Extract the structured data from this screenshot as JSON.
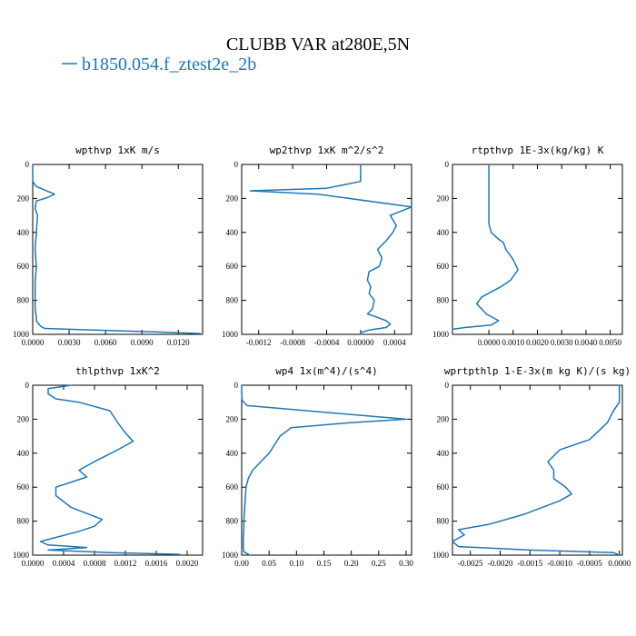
{
  "figure": {
    "title": "CLUBB VAR at280E,5N",
    "legend": {
      "label": "b1850.054.f_ztest2e_2b",
      "color": "#1f77b4",
      "placement": "top-left"
    }
  },
  "chart_data": [
    {
      "type": "line",
      "title": "wpthvp   1xK m/s",
      "xlabel": "",
      "ylabel": "",
      "xlim": [
        0,
        0.014
      ],
      "ylim": [
        0,
        1000
      ],
      "y_inverted": true,
      "x_ticks": [
        0,
        0.003,
        0.006,
        0.009,
        0.012
      ],
      "x_tick_labels": [
        "0.0000",
        "0.0030",
        "0.0060",
        "0.0090",
        "0.0120"
      ],
      "y_ticks": [
        0,
        200,
        400,
        600,
        800,
        1000
      ],
      "y_tick_labels": [
        "0",
        "200",
        "400",
        "600",
        "800",
        "1000"
      ],
      "series": [
        {
          "color": "#1f77b4",
          "x": [
            0,
            0,
            0,
            0.0003,
            0.0013,
            0.0018,
            0.0012,
            0.0003,
            0.0002,
            0.0004,
            0.0003,
            0.0002,
            0.0003,
            0.0002,
            0.0002,
            0.0002,
            0.0003,
            0.0003,
            0.0005,
            0.0007,
            0.001,
            0.005,
            0.01,
            0.0138
          ],
          "y": [
            0,
            50,
            100,
            130,
            160,
            175,
            195,
            215,
            260,
            300,
            400,
            500,
            600,
            700,
            800,
            850,
            900,
            920,
            940,
            955,
            965,
            975,
            985,
            995
          ]
        }
      ]
    },
    {
      "type": "line",
      "title": "wp2thvp   1xK m^2/s^2",
      "xlabel": "",
      "ylabel": "",
      "xlim": [
        -0.0014,
        0.0006
      ],
      "ylim": [
        0,
        1000
      ],
      "y_inverted": true,
      "x_ticks": [
        -0.0012,
        -0.0008,
        -0.0004,
        0,
        0.0004
      ],
      "x_tick_labels": [
        "-0.0012",
        "-0.0008",
        "-0.0004",
        "0.00000",
        "0.0004"
      ],
      "y_ticks": [
        0,
        200,
        400,
        600,
        800,
        1000
      ],
      "y_tick_labels": [
        "0",
        "200",
        "400",
        "600",
        "800",
        "1000"
      ],
      "series": [
        {
          "color": "#1f77b4",
          "x": [
            0,
            0,
            0,
            -0.0004,
            -0.0013,
            -0.0005,
            0.0006,
            0.00035,
            0.00042,
            0.00038,
            0.0003,
            0.0002,
            0.00025,
            0.00022,
            0.0001,
            8e-05,
            0.00012,
            0.0001,
            0.00016,
            0.00014,
            8e-05,
            0.0002,
            0.0003,
            0.00035,
            0.0003,
            0.0001,
            0,
            0
          ],
          "y": [
            0,
            50,
            100,
            140,
            155,
            175,
            250,
            300,
            360,
            400,
            450,
            500,
            550,
            600,
            630,
            680,
            720,
            760,
            800,
            850,
            880,
            900,
            920,
            940,
            960,
            975,
            990,
            1000
          ]
        }
      ]
    },
    {
      "type": "line",
      "title": "rtpthvp   1E-3x(kg/kg) K",
      "xlabel": "",
      "ylabel": "",
      "xlim": [
        -0.0015,
        0.0055
      ],
      "ylim": [
        0,
        1000
      ],
      "y_inverted": true,
      "x_ticks": [
        0,
        0.001,
        0.002,
        0.003,
        0.004,
        0.005
      ],
      "x_tick_labels": [
        "0.0000",
        "0.0010",
        "0.0020",
        "0.0030",
        "0.0040",
        "0.0050"
      ],
      "y_ticks": [
        0,
        200,
        400,
        600,
        800,
        1000
      ],
      "y_tick_labels": [
        "0",
        "200",
        "400",
        "600",
        "800",
        "1000"
      ],
      "series": [
        {
          "color": "#1f77b4",
          "x": [
            0,
            0,
            0,
            0,
            0,
            0.0001,
            0.0004,
            0.0006,
            0.0007,
            0.001,
            0.0012,
            0.0009,
            0.0005,
            -0.0003,
            -0.0005,
            -0.0001,
            0.0004,
            0.0001,
            -0.001,
            -0.0015
          ],
          "y": [
            0,
            100,
            200,
            300,
            350,
            400,
            440,
            460,
            500,
            560,
            620,
            680,
            720,
            780,
            820,
            880,
            920,
            945,
            960,
            970
          ]
        }
      ]
    },
    {
      "type": "line",
      "title": "thlpthvp   1xK^2",
      "xlabel": "",
      "ylabel": "",
      "xlim": [
        0,
        0.0022
      ],
      "ylim": [
        0,
        1000
      ],
      "y_inverted": true,
      "x_ticks": [
        0,
        0.0004,
        0.0008,
        0.0012,
        0.0016,
        0.002
      ],
      "x_tick_labels": [
        "0.0000",
        "0.0004",
        "0.0008",
        "0.0012",
        "0.0016",
        "0.0020"
      ],
      "y_ticks": [
        0,
        200,
        400,
        600,
        800,
        1000
      ],
      "y_tick_labels": [
        "0",
        "200",
        "400",
        "600",
        "800",
        "1000"
      ],
      "series": [
        {
          "color": "#1f77b4",
          "x": [
            0.0005,
            0.0002,
            0.0002,
            0.0003,
            0.0006,
            0.001,
            0.0011,
            0.0012,
            0.0013,
            0.0011,
            0.0008,
            0.0006,
            0.0007,
            0.0003,
            0.0003,
            0.0005,
            0.0009,
            0.0008,
            0.0006,
            0.0001,
            0.0002,
            0.0007,
            0.0002,
            0.001,
            0.0019
          ],
          "y": [
            0,
            20,
            50,
            80,
            100,
            150,
            220,
            280,
            330,
            380,
            450,
            500,
            540,
            600,
            650,
            720,
            790,
            830,
            860,
            920,
            940,
            955,
            970,
            985,
            995
          ]
        }
      ]
    },
    {
      "type": "line",
      "title": "wp4   1x(m^4)/(s^4)",
      "xlabel": "",
      "ylabel": "",
      "xlim": [
        0,
        0.31
      ],
      "ylim": [
        0,
        1000
      ],
      "y_inverted": true,
      "x_ticks": [
        0,
        0.05,
        0.1,
        0.15,
        0.2,
        0.25,
        0.3
      ],
      "x_tick_labels": [
        "0.00",
        "0.05",
        "0.10",
        "0.15",
        "0.20",
        "0.25",
        "0.30"
      ],
      "y_ticks": [
        0,
        200,
        400,
        600,
        800,
        1000
      ],
      "y_tick_labels": [
        "0",
        "200",
        "400",
        "600",
        "800",
        "1000"
      ],
      "series": [
        {
          "color": "#1f77b4",
          "x": [
            0,
            0,
            0.001,
            0.01,
            0.3,
            0.2,
            0.09,
            0.07,
            0.05,
            0.035,
            0.02,
            0.012,
            0.008,
            0.006,
            0.004,
            0.004,
            0.003,
            0.003,
            0.004,
            0.015
          ],
          "y": [
            0,
            50,
            90,
            120,
            200,
            220,
            250,
            300,
            400,
            450,
            500,
            550,
            600,
            700,
            800,
            850,
            900,
            950,
            980,
            1000
          ]
        }
      ]
    },
    {
      "type": "line",
      "title": "wprtpthlp   1-E-3x(m kg K)/(s kg)",
      "xlabel": "",
      "ylabel": "",
      "xlim": [
        -0.0028,
        5e-05
      ],
      "ylim": [
        0,
        1000
      ],
      "y_inverted": true,
      "x_ticks": [
        -0.0025,
        -0.002,
        -0.0015,
        -0.001,
        -0.0005,
        0
      ],
      "x_tick_labels": [
        "-0.0025",
        "-0.0020",
        "-0.0015",
        "-0.0010",
        "-0.0005",
        "0.0000"
      ],
      "y_ticks": [
        0,
        200,
        400,
        600,
        800,
        1000
      ],
      "y_tick_labels": [
        "0",
        "200",
        "400",
        "600",
        "800",
        "1000"
      ],
      "series": [
        {
          "color": "#1f77b4",
          "x": [
            0,
            0,
            -0.0001,
            -0.0002,
            -0.0005,
            -0.001,
            -0.0012,
            -0.0011,
            -0.0011,
            -0.0009,
            -0.0008,
            -0.001,
            -0.0016,
            -0.0022,
            -0.0027,
            -0.0026,
            -0.0028,
            -0.0027,
            -0.0015,
            -0.0001,
            0
          ],
          "y": [
            0,
            100,
            150,
            220,
            320,
            380,
            450,
            500,
            550,
            600,
            640,
            680,
            760,
            820,
            850,
            880,
            920,
            950,
            970,
            985,
            1000
          ]
        }
      ]
    }
  ]
}
